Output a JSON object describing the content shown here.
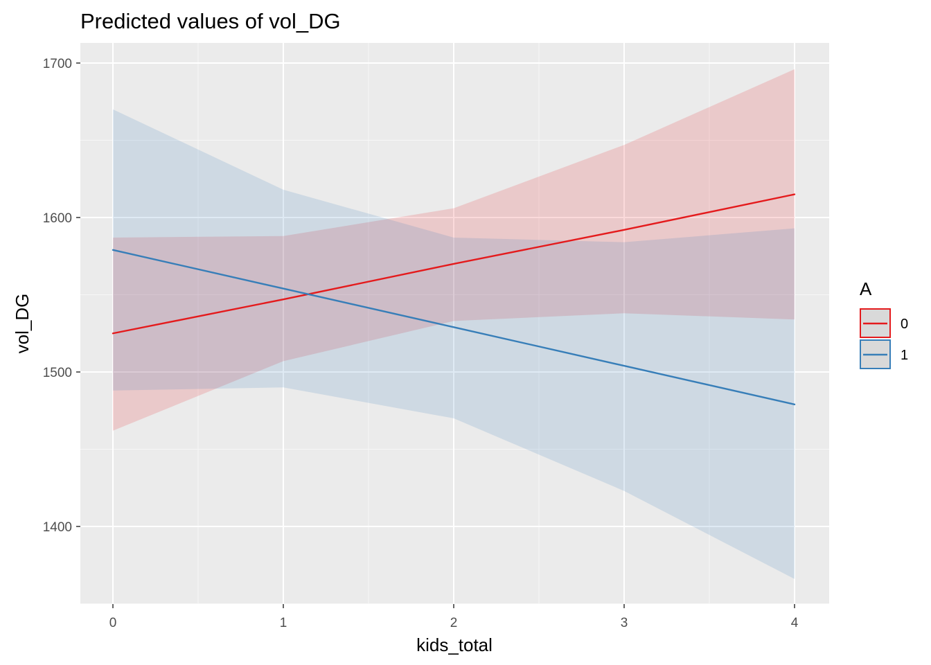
{
  "chart_data": {
    "type": "line",
    "title": "Predicted values of vol_DG",
    "xlabel": "kids_total",
    "ylabel": "vol_DG",
    "x": [
      0,
      1,
      2,
      3,
      4
    ],
    "x_ticks": [
      "0",
      "1",
      "2",
      "3",
      "4"
    ],
    "y_ticks": [
      "1400",
      "1500",
      "1600",
      "1700"
    ],
    "xlim": [
      -0.2,
      4.2
    ],
    "ylim": [
      1350,
      1712
    ],
    "grid": true,
    "legend": {
      "title": "A",
      "position": "right"
    },
    "series": [
      {
        "name": "0",
        "color": "#e41a1c",
        "fill": "rgba(228,26,28,0.16)",
        "values": [
          1525,
          1547,
          1570,
          1592,
          1615
        ],
        "upper": [
          1587,
          1588,
          1606,
          1647,
          1696
        ],
        "lower": [
          1462,
          1507,
          1533,
          1538,
          1534
        ]
      },
      {
        "name": "1",
        "color": "#377eb8",
        "fill": "rgba(55,126,184,0.16)",
        "values": [
          1579,
          1554,
          1529,
          1504,
          1479
        ],
        "upper": [
          1670,
          1618,
          1587,
          1584,
          1593
        ],
        "lower": [
          1488,
          1490,
          1470,
          1423,
          1366
        ]
      }
    ]
  }
}
